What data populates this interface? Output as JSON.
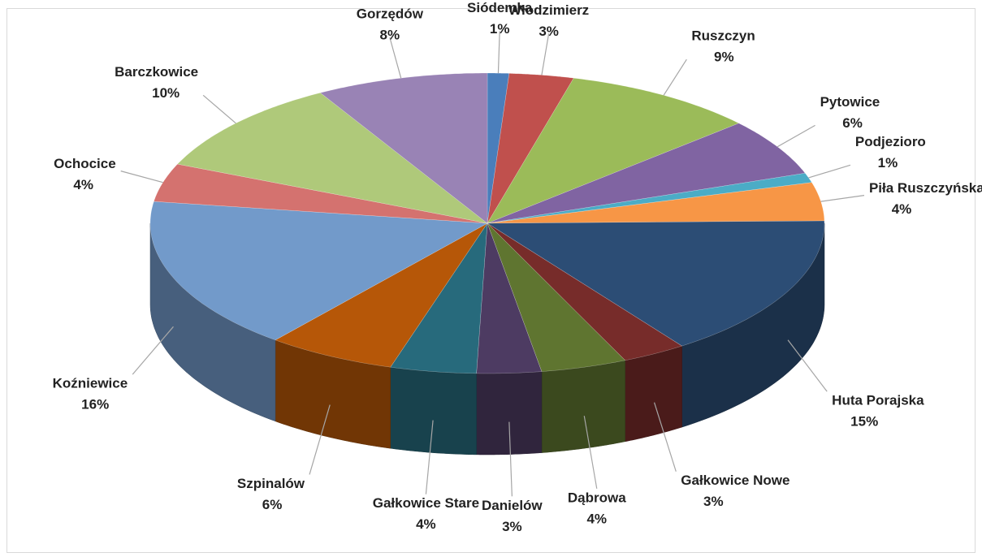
{
  "chart_data": {
    "type": "pie3d",
    "categories": [
      "Siódemka",
      "Włodzimierz",
      "Ruszczyn",
      "Pytowice",
      "Podjezioro",
      "Piła Ruszczyńska",
      "Huta Porajska",
      "Gałkowice Nowe",
      "Dąbrowa",
      "Danielów",
      "Gałkowice Stare",
      "Szpinalów",
      "Koźniewice",
      "Ochocice",
      "Barczkowice",
      "Gorzędów"
    ],
    "values": [
      1,
      3,
      9,
      6,
      1,
      4,
      15,
      3,
      4,
      3,
      4,
      6,
      16,
      4,
      10,
      8
    ],
    "value_labels": [
      "1%",
      "3%",
      "9%",
      "6%",
      "1%",
      "4%",
      "15%",
      "3%",
      "4%",
      "3%",
      "4%",
      "6%",
      "16%",
      "4%",
      "10%",
      "8%"
    ],
    "colors": [
      "#4a7ebb",
      "#c0504d",
      "#9bbb59",
      "#8064a2",
      "#4bacc6",
      "#f79646",
      "#2c4d75",
      "#772c2a",
      "#5f7530",
      "#4d3b62",
      "#276a7c",
      "#b65708",
      "#729aca",
      "#d4726f",
      "#afc97a",
      "#9983b5"
    ]
  }
}
